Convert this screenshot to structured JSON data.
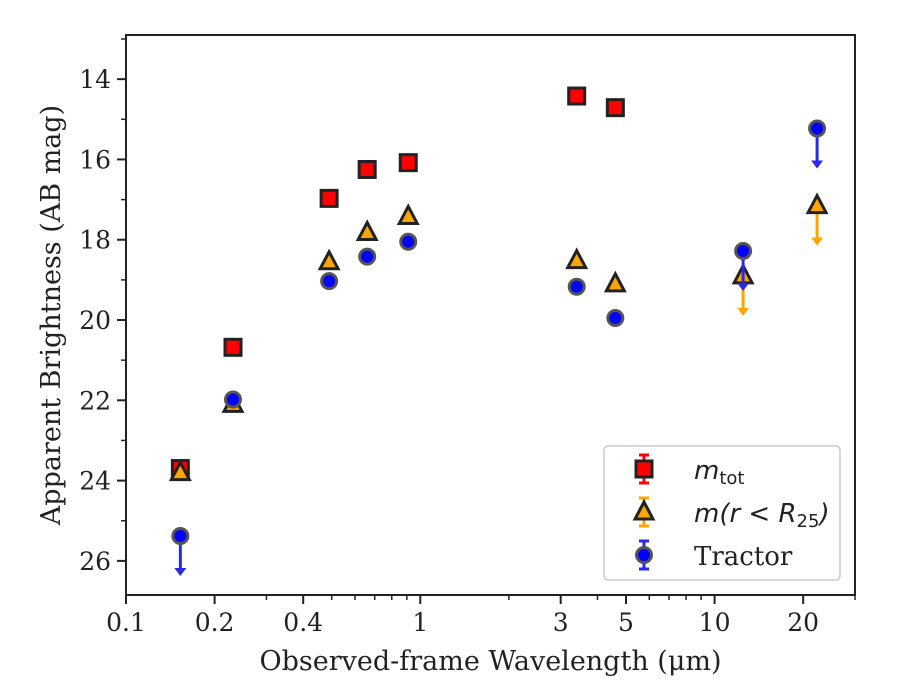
{
  "chart_data": {
    "type": "scatter",
    "xlabel": "Observed-frame Wavelength (μm)",
    "ylabel": "Apparent Brightness (AB mag)",
    "xscale": "log",
    "xlim": [
      0.1,
      30
    ],
    "ylim": [
      26.85,
      12.9
    ],
    "y_inverted": true,
    "x_ticks": [
      {
        "value": 0.1,
        "label": "0.1"
      },
      {
        "value": 0.2,
        "label": "0.2"
      },
      {
        "value": 0.4,
        "label": "0.4"
      },
      {
        "value": 1,
        "label": "1"
      },
      {
        "value": 3,
        "label": "3"
      },
      {
        "value": 5,
        "label": "5"
      },
      {
        "value": 10,
        "label": "10"
      },
      {
        "value": 20,
        "label": "20"
      }
    ],
    "y_ticks": [
      {
        "value": 14,
        "label": "14"
      },
      {
        "value": 16,
        "label": "16"
      },
      {
        "value": 18,
        "label": "18"
      },
      {
        "value": 20,
        "label": "20"
      },
      {
        "value": 22,
        "label": "22"
      },
      {
        "value": 24,
        "label": "24"
      },
      {
        "value": 26,
        "label": "26"
      }
    ],
    "legend_position": "lower-right",
    "legend": {
      "m_tot": {
        "prefix": "m",
        "subscript": "tot"
      },
      "m_r25": {
        "text": "m(r < R",
        "subscript": "25",
        "suffix": ")"
      },
      "tractor": "Tractor"
    },
    "series": [
      {
        "key": "m_tot",
        "marker": "square",
        "color": "#ff0000",
        "points": [
          {
            "x": 0.153,
            "y": 23.7,
            "upper_limit": false
          },
          {
            "x": 0.231,
            "y": 20.68,
            "upper_limit": false
          },
          {
            "x": 0.49,
            "y": 16.97,
            "upper_limit": false
          },
          {
            "x": 0.66,
            "y": 16.25,
            "upper_limit": false
          },
          {
            "x": 0.91,
            "y": 16.08,
            "upper_limit": false
          },
          {
            "x": 3.4,
            "y": 14.42,
            "upper_limit": false
          },
          {
            "x": 4.6,
            "y": 14.71,
            "upper_limit": false
          }
        ]
      },
      {
        "key": "m_r25",
        "marker": "triangle",
        "color": "#ffa500",
        "points": [
          {
            "x": 0.153,
            "y": 23.8,
            "upper_limit": false
          },
          {
            "x": 0.231,
            "y": 22.1,
            "upper_limit": false
          },
          {
            "x": 0.49,
            "y": 18.55,
            "upper_limit": false
          },
          {
            "x": 0.66,
            "y": 17.82,
            "upper_limit": false
          },
          {
            "x": 0.91,
            "y": 17.42,
            "upper_limit": false
          },
          {
            "x": 3.4,
            "y": 18.52,
            "upper_limit": false
          },
          {
            "x": 4.6,
            "y": 19.1,
            "upper_limit": false
          },
          {
            "x": 12.5,
            "y": 18.9,
            "upper_limit": true
          },
          {
            "x": 22.3,
            "y": 17.15,
            "upper_limit": true
          }
        ]
      },
      {
        "key": "tractor",
        "marker": "circle",
        "color": "#0000ff",
        "points": [
          {
            "x": 0.153,
            "y": 25.38,
            "upper_limit": true
          },
          {
            "x": 0.231,
            "y": 21.98,
            "upper_limit": false
          },
          {
            "x": 0.49,
            "y": 19.03,
            "upper_limit": false
          },
          {
            "x": 0.66,
            "y": 18.42,
            "upper_limit": false
          },
          {
            "x": 0.91,
            "y": 18.05,
            "upper_limit": false
          },
          {
            "x": 3.4,
            "y": 19.17,
            "upper_limit": false
          },
          {
            "x": 4.6,
            "y": 19.95,
            "upper_limit": false
          },
          {
            "x": 12.5,
            "y": 18.28,
            "upper_limit": true
          },
          {
            "x": 22.3,
            "y": 15.23,
            "upper_limit": true
          }
        ]
      }
    ]
  }
}
